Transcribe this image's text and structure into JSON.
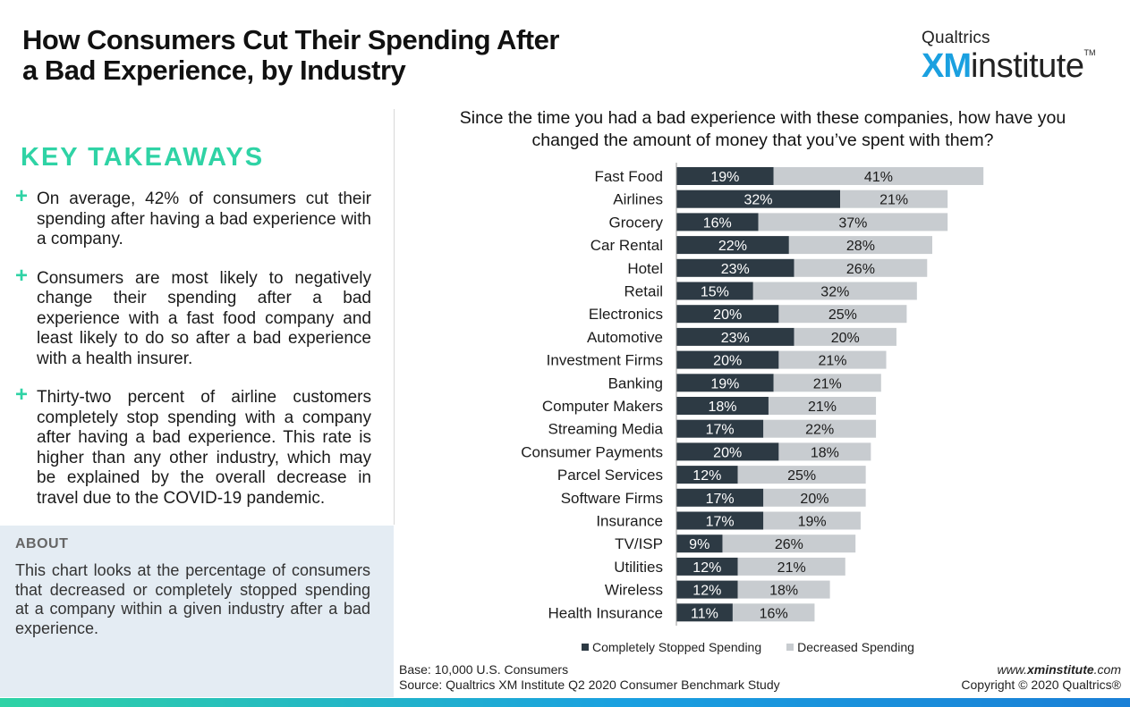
{
  "header": {
    "title_line1": "How Consumers Cut Their Spending After",
    "title_line2": "a Bad Experience, by Industry",
    "logo_qualtrics": "Qualtrics",
    "logo_xm": "XM",
    "logo_institute": "institute",
    "logo_tm": "TM"
  },
  "takeaways": {
    "heading": "KEY TAKEAWAYS",
    "items": [
      "On average, 42% of consumers cut their spending after having a bad experience with a company.",
      "Consumers are most likely to negatively change their spending after a bad experience with a fast food company and least likely to do so after a bad experience with a health insurer.",
      "Thirty-two percent of airline customers completely stop spending with a company after having a bad experience. This rate is higher than any other industry, which may be explained by the overall decrease in travel due to the COVID-19 pandemic."
    ]
  },
  "about": {
    "heading": "ABOUT",
    "text": "This chart looks at the percentage of consumers that decreased or completely stopped spending at a company within a given industry after a bad experience."
  },
  "chart_data": {
    "type": "bar",
    "orientation": "horizontal",
    "stacked": true,
    "title": "Since the time you had a bad experience with these companies, how have you changed the amount of money that you’ve spent with them?",
    "categories": [
      "Fast Food",
      "Airlines",
      "Grocery",
      "Car Rental",
      "Hotel",
      "Retail",
      "Electronics",
      "Automotive",
      "Investment Firms",
      "Banking",
      "Computer Makers",
      "Streaming Media",
      "Consumer Payments",
      "Parcel Services",
      "Software Firms",
      "Insurance",
      "TV/ISP",
      "Utilities",
      "Wireless",
      "Health Insurance"
    ],
    "series": [
      {
        "name": "Completely Stopped Spending",
        "color": "#2d3a44",
        "values": [
          19,
          32,
          16,
          22,
          23,
          15,
          20,
          23,
          20,
          19,
          18,
          17,
          20,
          12,
          17,
          17,
          9,
          12,
          12,
          11
        ]
      },
      {
        "name": "Decreased Spending",
        "color": "#c8ccd0",
        "values": [
          41,
          21,
          37,
          28,
          26,
          32,
          25,
          20,
          21,
          21,
          21,
          22,
          18,
          25,
          20,
          19,
          26,
          21,
          18,
          16
        ]
      }
    ],
    "value_suffix": "%",
    "xlim": [
      0,
      60
    ],
    "legend_position": "bottom",
    "grid": false
  },
  "footer": {
    "base": "Base: 10,000 U.S. Consumers",
    "source": "Source: Qualtrics XM Institute Q2 2020 Consumer Benchmark Study",
    "site_prefix": "www.",
    "site_bold": "xminstitute",
    "site_suffix": ".com",
    "copyright": "Copyright © 2020 Qualtrics®"
  }
}
